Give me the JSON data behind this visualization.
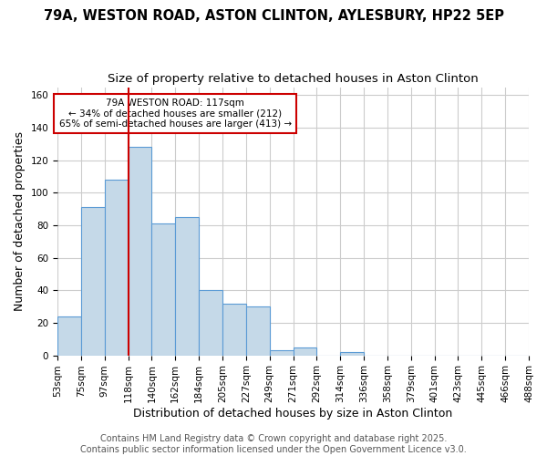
{
  "title1": "79A, WESTON ROAD, ASTON CLINTON, AYLESBURY, HP22 5EP",
  "title2": "Size of property relative to detached houses in Aston Clinton",
  "xlabel": "Distribution of detached houses by size in Aston Clinton",
  "ylabel": "Number of detached properties",
  "tick_labels": [
    "53sqm",
    "75sqm",
    "97sqm",
    "118sqm",
    "140sqm",
    "162sqm",
    "184sqm",
    "205sqm",
    "227sqm",
    "249sqm",
    "271sqm",
    "292sqm",
    "314sqm",
    "336sqm",
    "358sqm",
    "379sqm",
    "401sqm",
    "423sqm",
    "445sqm",
    "466sqm",
    "488sqm"
  ],
  "bar_heights": [
    24,
    91,
    108,
    128,
    81,
    85,
    40,
    32,
    30,
    3,
    5,
    0,
    2,
    0,
    0,
    0,
    0,
    0,
    0,
    0
  ],
  "bar_color": "#c5d9e8",
  "bar_edge_color": "#5b9bd5",
  "red_line_bin_index": 3,
  "annotation_title": "79A WESTON ROAD: 117sqm",
  "annotation_line1": "← 34% of detached houses are smaller (212)",
  "annotation_line2": "65% of semi-detached houses are larger (413) →",
  "annotation_box_color": "#ffffff",
  "annotation_box_edge": "#cc0000",
  "ylim": [
    0,
    165
  ],
  "yticks": [
    0,
    20,
    40,
    60,
    80,
    100,
    120,
    140,
    160
  ],
  "footer1": "Contains HM Land Registry data © Crown copyright and database right 2025.",
  "footer2": "Contains public sector information licensed under the Open Government Licence v3.0.",
  "background_color": "#ffffff",
  "grid_color": "#cccccc",
  "title_fontsize": 10.5,
  "subtitle_fontsize": 9.5,
  "axis_label_fontsize": 9,
  "tick_fontsize": 7.5,
  "footer_fontsize": 7
}
